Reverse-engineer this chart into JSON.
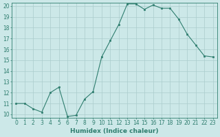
{
  "x": [
    0,
    1,
    2,
    3,
    4,
    5,
    6,
    7,
    8,
    9,
    10,
    11,
    12,
    13,
    14,
    15,
    16,
    17,
    18,
    19,
    20,
    21,
    22,
    23
  ],
  "y": [
    11,
    11,
    10.5,
    10.2,
    12,
    12.5,
    9.8,
    9.9,
    11.4,
    12.1,
    15.3,
    16.8,
    18.3,
    20.2,
    20.2,
    19.7,
    20.1,
    19.8,
    19.8,
    18.8,
    17.4,
    16.4,
    15.4,
    15.3
  ],
  "line_color": "#2e7d6e",
  "marker": "s",
  "marker_size": 2,
  "bg_color": "#cce8e8",
  "grid_color": "#aacccc",
  "xlabel": "Humidex (Indice chaleur)",
  "ylim": [
    9.7,
    20.3
  ],
  "xlim": [
    -0.5,
    23.5
  ],
  "yticks": [
    10,
    11,
    12,
    13,
    14,
    15,
    16,
    17,
    18,
    19,
    20
  ],
  "xticks": [
    0,
    1,
    2,
    3,
    4,
    5,
    6,
    7,
    8,
    9,
    10,
    11,
    12,
    13,
    14,
    15,
    16,
    17,
    18,
    19,
    20,
    21,
    22,
    23
  ],
  "tick_color": "#2e7d6e",
  "label_color": "#2e7d6e",
  "font_size": 5.5,
  "xlabel_fontsize": 6.5,
  "lw": 0.8
}
